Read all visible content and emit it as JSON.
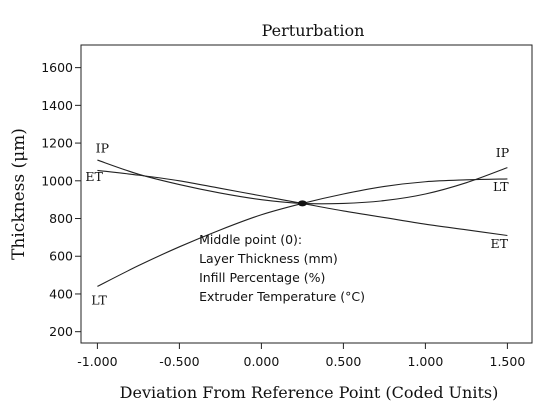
{
  "chart_data": {
    "type": "line",
    "title": "Perturbation",
    "xlabel": "Deviation From Reference Point (Coded Units)",
    "ylabel": "Thickness  (μm)",
    "xlim": [
      -1.1,
      1.65
    ],
    "ylim": [
      140,
      1720
    ],
    "x_ticks": [
      -1.0,
      -0.5,
      0.0,
      0.5,
      1.0,
      1.5
    ],
    "x_tick_labels": [
      "-1.000",
      "-0.500",
      "0.000",
      "0.500",
      "1.000",
      "1.500"
    ],
    "y_ticks": [
      200,
      400,
      600,
      800,
      1000,
      1200,
      1400,
      1600
    ],
    "y_tick_labels": [
      "200",
      "400",
      "600",
      "800",
      "1000",
      "1200",
      "1400",
      "1600"
    ],
    "grid": false,
    "reference_point": {
      "x": 0.25,
      "y": 880
    },
    "series": [
      {
        "name": "IP",
        "x": [
          -1.0,
          -0.75,
          -0.5,
          -0.25,
          0.0,
          0.25,
          0.5,
          0.75,
          1.0,
          1.25,
          1.5
        ],
        "y": [
          1110,
          1035,
          980,
          935,
          900,
          880,
          880,
          895,
          930,
          990,
          1070
        ],
        "labels": [
          {
            "text": "IP",
            "x": -0.97,
            "y": 1150
          },
          {
            "text": "IP",
            "x": 1.47,
            "y": 1125
          }
        ]
      },
      {
        "name": "ET",
        "x": [
          -1.0,
          -0.75,
          -0.5,
          -0.25,
          0.0,
          0.25,
          0.5,
          0.75,
          1.0,
          1.25,
          1.5
        ],
        "y": [
          1055,
          1030,
          1000,
          960,
          920,
          880,
          840,
          805,
          770,
          740,
          710
        ],
        "labels": [
          {
            "text": "ET",
            "x": -1.02,
            "y": 1000
          },
          {
            "text": "ET",
            "x": 1.45,
            "y": 645
          }
        ]
      },
      {
        "name": "LT",
        "x": [
          -1.0,
          -0.75,
          -0.5,
          -0.25,
          0.0,
          0.25,
          0.5,
          0.75,
          1.0,
          1.25,
          1.5
        ],
        "y": [
          440,
          550,
          650,
          740,
          820,
          880,
          930,
          970,
          995,
          1005,
          1010
        ],
        "labels": [
          {
            "text": "LT",
            "x": -0.99,
            "y": 345
          },
          {
            "text": "LT",
            "x": 1.46,
            "y": 945
          }
        ]
      }
    ],
    "annotation": {
      "lines": [
        "Middle point (0):",
        "Layer Thickness (mm)",
        "Infill Percentage (%)",
        "Extruder Temperature (°C)"
      ],
      "x": -0.38,
      "y": 665
    }
  }
}
